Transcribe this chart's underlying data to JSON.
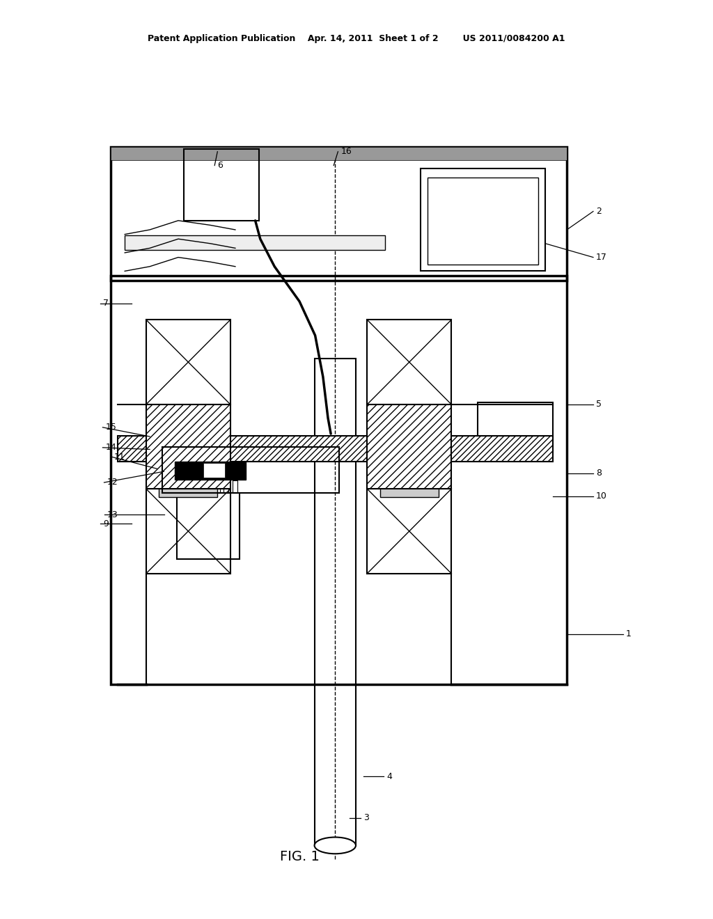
{
  "bg_color": "#ffffff",
  "line_color": "#000000",
  "header_text": "Patent Application Publication    Apr. 14, 2011  Sheet 1 of 2        US 2011/0084200 A1",
  "footer_text": "FIG. 1",
  "label_fontsize": 9,
  "header_fontsize": 9,
  "footer_fontsize": 14,
  "labels_pos": {
    "1": [
      0.878,
      0.31,
      0.795,
      0.31
    ],
    "2": [
      0.836,
      0.77,
      0.795,
      0.75
    ],
    "3": [
      0.51,
      0.11,
      0.49,
      0.11
    ],
    "4": [
      0.542,
      0.155,
      0.51,
      0.155
    ],
    "5": [
      0.836,
      0.56,
      0.795,
      0.56
    ],
    "6": [
      0.305,
      0.82,
      0.305,
      0.835
    ],
    "7": [
      0.145,
      0.67,
      0.185,
      0.67
    ],
    "8": [
      0.836,
      0.485,
      0.795,
      0.485
    ],
    "9": [
      0.145,
      0.43,
      0.185,
      0.43
    ],
    "10": [
      0.836,
      0.46,
      0.775,
      0.46
    ],
    "11": [
      0.16,
      0.503,
      0.22,
      0.49
    ],
    "12": [
      0.15,
      0.475,
      0.23,
      0.487
    ],
    "13": [
      0.15,
      0.44,
      0.23,
      0.44
    ],
    "14": [
      0.148,
      0.513,
      0.21,
      0.511
    ],
    "15": [
      0.148,
      0.535,
      0.21,
      0.525
    ],
    "16": [
      0.478,
      0.835,
      0.468,
      0.82
    ],
    "17": [
      0.836,
      0.72,
      0.765,
      0.735
    ]
  }
}
